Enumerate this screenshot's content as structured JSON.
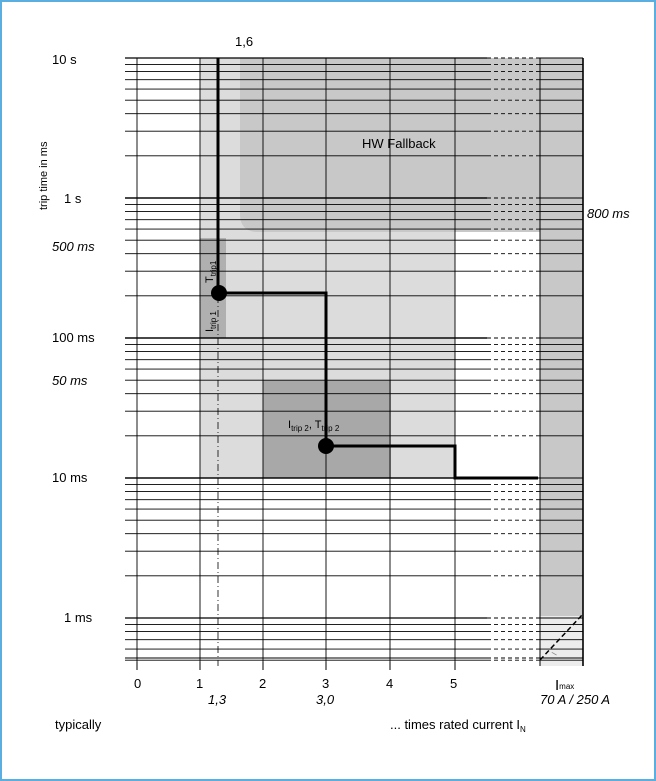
{
  "chart_data": {
    "type": "line",
    "ylabel": "trip time in ms",
    "y_scale": "log",
    "y_ticks": [
      {
        "label": "10 s",
        "value": 10000,
        "style": "major"
      },
      {
        "label": "1 s",
        "value": 1000,
        "style": "major"
      },
      {
        "label": "500 ms",
        "value": 500,
        "style": "italic"
      },
      {
        "label": "100 ms",
        "value": 100,
        "style": "major"
      },
      {
        "label": "50 ms",
        "value": 50,
        "style": "italic"
      },
      {
        "label": "10 ms",
        "value": 10,
        "style": "major"
      },
      {
        "label": "1 ms",
        "value": 1,
        "style": "major"
      }
    ],
    "ylim": [
      0.5,
      10000
    ],
    "x_ticks": [
      {
        "label": "0",
        "value": 0
      },
      {
        "label": "1",
        "value": 1
      },
      {
        "label": "2",
        "value": 2
      },
      {
        "label": "3",
        "value": 3
      },
      {
        "label": "4",
        "value": 4
      },
      {
        "label": "5",
        "value": 5
      }
    ],
    "x_ticks_italic": [
      {
        "label": "1,3",
        "value": 1.3
      },
      {
        "label": "3,0",
        "value": 3.0
      }
    ],
    "xlim": [
      0,
      7
    ],
    "top_marker": {
      "label": "1,6"
    },
    "series": [
      {
        "values": [
          {
            "x": 1.3,
            "y": 10000
          },
          {
            "x": 1.3,
            "y": 200
          },
          {
            "x": 2.95,
            "y": 200
          },
          {
            "x": 2.95,
            "y": 15
          },
          {
            "x": 5.0,
            "y": 15
          },
          {
            "x": 5.0,
            "y": 10
          },
          {
            "x": 6.3,
            "y": 10
          }
        ]
      }
    ],
    "points": [
      {
        "x": 1.3,
        "y": 200,
        "label_main": "T",
        "label_sub": "trip1"
      },
      {
        "x": 2.95,
        "y": 15,
        "label_main": "I",
        "label_sub": "trip 2",
        "label2_main": "T",
        "label2_sub": "trip 2"
      }
    ],
    "regions": [
      {
        "name": "HW Fallback"
      },
      {
        "name": "800 ms"
      }
    ],
    "itrip1_label": {
      "main": "I",
      "sub": "trip 1"
    },
    "imax": {
      "label": "I",
      "sub": "max",
      "values": "70 A / 250 A"
    },
    "ikmax_label": "I",
    "footer_left": "typically",
    "footer_right": "... times rated current I",
    "footer_right_sub": "N"
  },
  "colors": {
    "frame": "#5aaee0",
    "light_gray": "#dcdcdc",
    "mid_gray": "#c0c0c0",
    "dark_gray": "#a8a8a8",
    "curve": "#000000"
  }
}
